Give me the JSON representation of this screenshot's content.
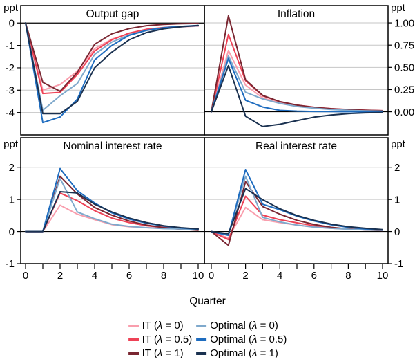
{
  "figure": {
    "xlabel": "Quarter",
    "unit_label": "ppt"
  },
  "chart_data": {
    "type": "line",
    "x": [
      0,
      1,
      2,
      3,
      4,
      5,
      6,
      7,
      8,
      9,
      10
    ],
    "xlabel": "Quarter",
    "x_major_ticks": [
      0,
      2,
      4,
      6,
      8,
      10
    ],
    "unit_label": "ppt",
    "grid": true,
    "legend_position": "bottom",
    "series_meta": [
      {
        "id": "it0",
        "label": "IT (λ = 0)",
        "color": "#F99EAD"
      },
      {
        "id": "it05",
        "label": "IT (λ = 0.5)",
        "color": "#EE4256"
      },
      {
        "id": "it1",
        "label": "IT (λ = 1)",
        "color": "#7A2631"
      },
      {
        "id": "opt0",
        "label": "Optimal (λ = 0)",
        "color": "#7FA9CC"
      },
      {
        "id": "opt05",
        "label": "Optimal (λ = 0.5)",
        "color": "#1E6CBF"
      },
      {
        "id": "opt1",
        "label": "Optimal (λ = 1)",
        "color": "#1A3150"
      }
    ],
    "panels": [
      {
        "title": "Output gap",
        "axis_side": "left",
        "ylim": [
          -5.0,
          0.78
        ],
        "yticks": [
          0,
          -1,
          -2,
          -3,
          -4
        ],
        "tick_format": "int",
        "series": {
          "it0": [
            0,
            -3.0,
            -2.75,
            -2.15,
            -1.15,
            -0.72,
            -0.47,
            -0.3,
            -0.22,
            -0.17,
            -0.14
          ],
          "it05": [
            0,
            -3.15,
            -3.1,
            -2.3,
            -1.25,
            -0.75,
            -0.45,
            -0.28,
            -0.2,
            -0.15,
            -0.13
          ],
          "it1": [
            0,
            -2.65,
            -3.05,
            -2.2,
            -0.95,
            -0.48,
            -0.25,
            -0.12,
            -0.06,
            -0.03,
            -0.02
          ],
          "opt0": [
            0,
            -3.9,
            -3.25,
            -2.7,
            -1.4,
            -0.85,
            -0.53,
            -0.33,
            -0.22,
            -0.16,
            -0.13
          ],
          "opt05": [
            0,
            -4.45,
            -4.2,
            -3.4,
            -1.65,
            -1.0,
            -0.55,
            -0.33,
            -0.21,
            -0.15,
            -0.11
          ],
          "opt1": [
            0,
            -4.05,
            -4.05,
            -3.5,
            -2.0,
            -1.3,
            -0.75,
            -0.43,
            -0.26,
            -0.17,
            -0.11
          ]
        }
      },
      {
        "title": "Inflation",
        "axis_side": "right",
        "ylim": [
          -0.26,
          1.195
        ],
        "yticks": [
          1.0,
          0.75,
          0.5,
          0.25,
          0
        ],
        "tick_format": "2dp",
        "series": {
          "it0": [
            0,
            0.69,
            0.3,
            0.157,
            0.1,
            0.065,
            0.045,
            0.032,
            0.022,
            0.016,
            0.012
          ],
          "it05": [
            0,
            0.87,
            0.35,
            0.18,
            0.115,
            0.075,
            0.052,
            0.036,
            0.026,
            0.018,
            0.013
          ],
          "it1": [
            0,
            1.08,
            0.36,
            0.185,
            0.115,
            0.075,
            0.05,
            0.035,
            0.024,
            0.017,
            0.012
          ],
          "opt0": [
            0,
            0.63,
            0.22,
            0.145,
            0.095,
            0.06,
            0.04,
            0.026,
            0.016,
            0.011,
            0.008
          ],
          "opt05": [
            0,
            0.6,
            0.13,
            0.054,
            0.016,
            0.008,
            0.004,
            0.002,
            0.001,
            0.0,
            0.0
          ],
          "opt1": [
            0,
            0.52,
            -0.05,
            -0.165,
            -0.14,
            -0.1,
            -0.06,
            -0.036,
            -0.02,
            -0.012,
            -0.008
          ]
        }
      },
      {
        "title": "Nominal interest rate",
        "axis_side": "left",
        "ylim": [
          -1.0,
          2.92
        ],
        "yticks": [
          2,
          1,
          0,
          -1
        ],
        "tick_format": "int",
        "series": {
          "it0": [
            0,
            0,
            0.82,
            0.54,
            0.37,
            0.215,
            0.15,
            0.12,
            0.1,
            0.09,
            0.09
          ],
          "it05": [
            0,
            0,
            1.2,
            0.96,
            0.65,
            0.42,
            0.28,
            0.18,
            0.13,
            0.1,
            0.09
          ],
          "it1": [
            0,
            0,
            1.72,
            1.17,
            0.75,
            0.51,
            0.33,
            0.2,
            0.12,
            0.07,
            0.04
          ],
          "opt0": [
            0,
            0,
            1.65,
            0.61,
            0.4,
            0.23,
            0.16,
            0.12,
            0.09,
            0.08,
            0.07
          ],
          "opt05": [
            0,
            0,
            1.96,
            1.27,
            0.89,
            0.58,
            0.39,
            0.26,
            0.17,
            0.11,
            0.07
          ],
          "opt1": [
            0,
            0,
            1.24,
            1.2,
            0.85,
            0.61,
            0.42,
            0.28,
            0.18,
            0.12,
            0.08
          ]
        }
      },
      {
        "title": "Real interest rate",
        "axis_side": "right",
        "ylim": [
          -1.0,
          2.92
        ],
        "yticks": [
          2,
          1,
          0,
          -1
        ],
        "tick_format": "int",
        "series": {
          "it0": [
            0,
            -0.2,
            0.75,
            0.37,
            0.28,
            0.2,
            0.14,
            0.1,
            0.07,
            0.05,
            0.04
          ],
          "it05": [
            0,
            -0.25,
            1.1,
            0.51,
            0.37,
            0.27,
            0.18,
            0.12,
            0.08,
            0.06,
            0.05
          ],
          "it1": [
            0,
            -0.43,
            1.55,
            0.78,
            0.54,
            0.35,
            0.22,
            0.13,
            0.08,
            0.05,
            0.03
          ],
          "opt0": [
            0,
            -0.1,
            1.72,
            0.44,
            0.3,
            0.2,
            0.14,
            0.1,
            0.07,
            0.05,
            0.04
          ],
          "opt05": [
            0,
            -0.12,
            1.93,
            0.85,
            0.68,
            0.48,
            0.33,
            0.21,
            0.13,
            0.08,
            0.05
          ],
          "opt1": [
            0,
            -0.07,
            1.34,
            0.99,
            0.71,
            0.5,
            0.35,
            0.23,
            0.15,
            0.1,
            0.06
          ]
        }
      }
    ]
  }
}
